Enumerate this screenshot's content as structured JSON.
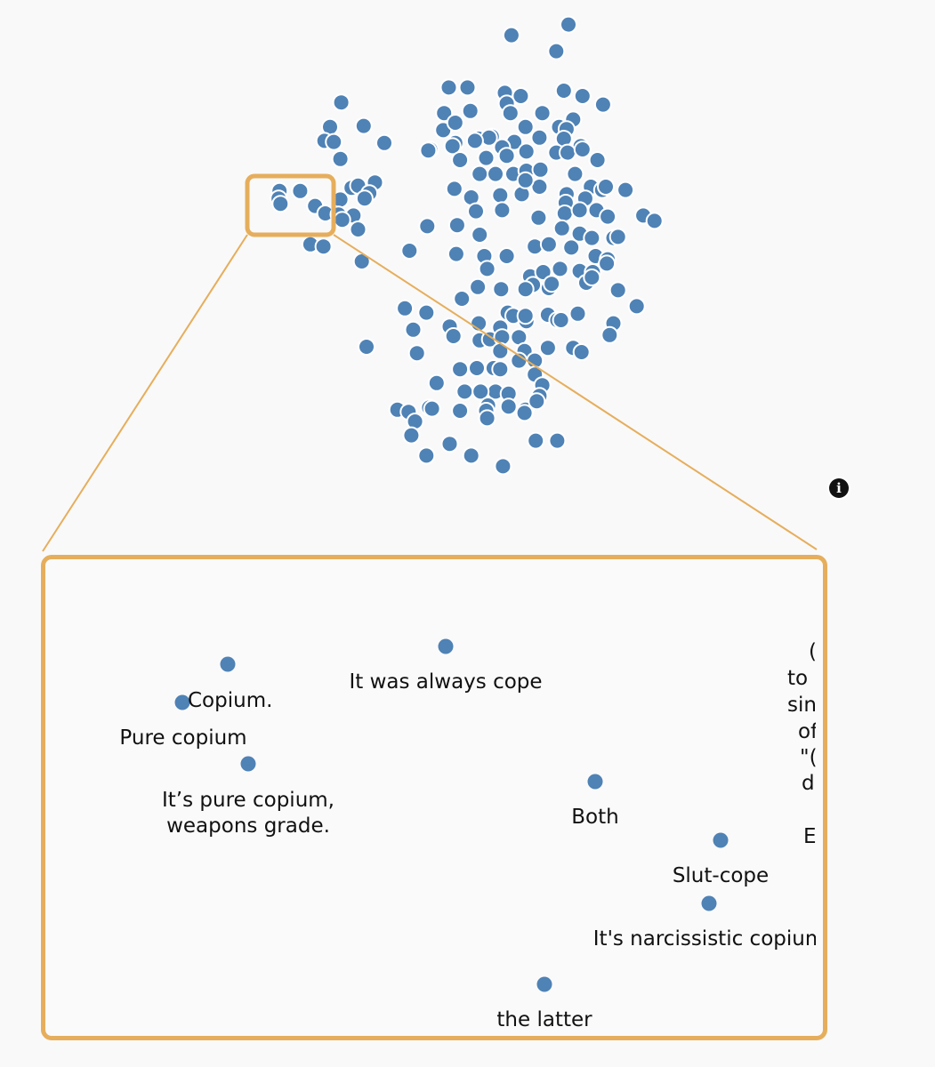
{
  "info_icon": {
    "symbol": "i",
    "name": "info-icon"
  },
  "colors": {
    "point": "#4f82b5",
    "point_stroke": "#ffffff",
    "highlight": "#e6ae5c",
    "label": "#111111",
    "background": "#f9f9f9"
  },
  "zoom_points": [
    {
      "text": "It was always cope"
    },
    {
      "text": ""
    },
    {
      "text": "Copium."
    },
    {
      "text": "Pure copium"
    },
    {
      "text": "It’s pure copium,\nweapons grade."
    },
    {
      "text": "Both"
    },
    {
      "text": "Slut-cope"
    },
    {
      "text": "It's narcissistic copium"
    },
    {
      "text": "the latter"
    }
  ],
  "clipped_fragments": [
    "(",
    "to",
    "sin",
    "of",
    "\"(",
    "d",
    "E"
  ],
  "chart_data": {
    "type": "scatter",
    "title": "",
    "xlabel": "",
    "ylabel": "",
    "grid": false,
    "legend": "none",
    "note": "Embedding scatter of text responses; axes unlabeled. Overview points are approximate positions in unitless embedding space (x right, y down, range 0-100).",
    "xlim": [
      0,
      100
    ],
    "ylim": [
      0,
      100
    ],
    "highlight_box": {
      "x": [
        26.5,
        35.5
      ],
      "y": [
        16.5,
        22
      ]
    },
    "points": [
      [
        60.8,
        2.3
      ],
      [
        54.7,
        3.3
      ],
      [
        59.5,
        4.8
      ],
      [
        48.0,
        8.2
      ],
      [
        50.0,
        8.2
      ],
      [
        54.0,
        8.7
      ],
      [
        55.7,
        9.0
      ],
      [
        54.2,
        9.7
      ],
      [
        60.3,
        8.5
      ],
      [
        62.3,
        9.0
      ],
      [
        64.5,
        9.8
      ],
      [
        36.5,
        9.6
      ],
      [
        47.5,
        10.6
      ],
      [
        50.3,
        10.4
      ],
      [
        54.6,
        10.6
      ],
      [
        58.0,
        10.6
      ],
      [
        61.3,
        11.2
      ],
      [
        35.3,
        11.9
      ],
      [
        38.9,
        11.8
      ],
      [
        47.4,
        12.2
      ],
      [
        48.7,
        11.5
      ],
      [
        52.6,
        12.8
      ],
      [
        56.2,
        11.9
      ],
      [
        59.8,
        11.9
      ],
      [
        60.6,
        12.1
      ],
      [
        34.7,
        13.2
      ],
      [
        35.7,
        13.3
      ],
      [
        41.1,
        13.4
      ],
      [
        46.0,
        14.0
      ],
      [
        48.7,
        13.4
      ],
      [
        51.2,
        13.0
      ],
      [
        52.3,
        12.9
      ],
      [
        55.0,
        13.3
      ],
      [
        57.7,
        12.9
      ],
      [
        60.3,
        13.0
      ],
      [
        62.1,
        13.7
      ],
      [
        36.4,
        14.9
      ],
      [
        45.8,
        14.1
      ],
      [
        48.4,
        13.7
      ],
      [
        50.8,
        13.2
      ],
      [
        53.7,
        13.8
      ],
      [
        56.3,
        14.2
      ],
      [
        59.5,
        14.3
      ],
      [
        60.7,
        14.3
      ],
      [
        62.3,
        14.0
      ],
      [
        63.9,
        15.0
      ],
      [
        49.2,
        15.0
      ],
      [
        52.0,
        14.8
      ],
      [
        54.2,
        14.6
      ],
      [
        51.3,
        16.3
      ],
      [
        53.0,
        16.3
      ],
      [
        54.9,
        16.3
      ],
      [
        56.3,
        16.0
      ],
      [
        57.8,
        15.9
      ],
      [
        61.5,
        16.3
      ],
      [
        63.2,
        17.5
      ],
      [
        64.4,
        17.8
      ],
      [
        66.9,
        17.8
      ],
      [
        40.1,
        17.1
      ],
      [
        29.9,
        17.9
      ],
      [
        32.1,
        17.9
      ],
      [
        37.6,
        17.6
      ],
      [
        38.3,
        17.4
      ],
      [
        39.5,
        18.1
      ],
      [
        29.8,
        18.6
      ],
      [
        30.0,
        19.1
      ],
      [
        33.7,
        19.3
      ],
      [
        36.4,
        18.7
      ],
      [
        39.0,
        18.6
      ],
      [
        48.6,
        17.7
      ],
      [
        50.4,
        18.5
      ],
      [
        53.5,
        18.3
      ],
      [
        55.8,
        18.2
      ],
      [
        57.7,
        17.5
      ],
      [
        56.2,
        16.9
      ],
      [
        60.6,
        18.2
      ],
      [
        62.6,
        18.6
      ],
      [
        64.8,
        17.5
      ],
      [
        60.5,
        19.0
      ],
      [
        34.8,
        20.0
      ],
      [
        36.2,
        20.1
      ],
      [
        37.8,
        20.2
      ],
      [
        36.6,
        20.6
      ],
      [
        38.3,
        21.5
      ],
      [
        50.9,
        19.8
      ],
      [
        53.7,
        19.7
      ],
      [
        57.6,
        20.4
      ],
      [
        60.4,
        20.0
      ],
      [
        62.0,
        19.7
      ],
      [
        63.8,
        19.7
      ],
      [
        65.0,
        20.3
      ],
      [
        68.8,
        20.2
      ],
      [
        70.0,
        20.7
      ],
      [
        45.7,
        21.2
      ],
      [
        48.9,
        21.1
      ],
      [
        51.3,
        22.0
      ],
      [
        60.1,
        21.4
      ],
      [
        62.0,
        21.9
      ],
      [
        63.3,
        22.3
      ],
      [
        65.6,
        22.3
      ],
      [
        66.1,
        22.2
      ],
      [
        33.2,
        22.9
      ],
      [
        34.6,
        23.1
      ],
      [
        43.8,
        23.5
      ],
      [
        48.8,
        23.8
      ],
      [
        51.8,
        24.0
      ],
      [
        54.2,
        24.0
      ],
      [
        57.2,
        23.1
      ],
      [
        58.7,
        22.9
      ],
      [
        61.1,
        23.2
      ],
      [
        63.7,
        24.0
      ],
      [
        65.0,
        24.3
      ],
      [
        38.7,
        24.5
      ],
      [
        52.1,
        25.2
      ],
      [
        56.7,
        25.9
      ],
      [
        58.1,
        25.5
      ],
      [
        59.9,
        25.2
      ],
      [
        62.0,
        25.4
      ],
      [
        63.4,
        25.5
      ],
      [
        64.9,
        24.7
      ],
      [
        57.0,
        26.7
      ],
      [
        58.7,
        27.0
      ],
      [
        62.7,
        26.5
      ],
      [
        63.3,
        26.0
      ],
      [
        51.1,
        26.9
      ],
      [
        53.6,
        27.1
      ],
      [
        56.2,
        27.1
      ],
      [
        59.0,
        26.6
      ],
      [
        66.1,
        27.2
      ],
      [
        49.4,
        28.0
      ],
      [
        68.1,
        28.7
      ],
      [
        43.3,
        28.9
      ],
      [
        45.6,
        29.3
      ],
      [
        54.3,
        29.3
      ],
      [
        54.9,
        29.6
      ],
      [
        56.3,
        30.1
      ],
      [
        58.6,
        29.5
      ],
      [
        56.2,
        29.6
      ],
      [
        59.6,
        30.0
      ],
      [
        60.0,
        30.0
      ],
      [
        61.8,
        29.4
      ],
      [
        65.6,
        30.3
      ],
      [
        48.1,
        30.6
      ],
      [
        51.2,
        30.3
      ],
      [
        53.5,
        30.7
      ],
      [
        55.5,
        31.6
      ],
      [
        65.2,
        31.4
      ],
      [
        44.2,
        30.9
      ],
      [
        48.5,
        31.5
      ],
      [
        51.3,
        31.9
      ],
      [
        52.4,
        31.8
      ],
      [
        53.7,
        31.6
      ],
      [
        39.2,
        32.5
      ],
      [
        44.6,
        33.1
      ],
      [
        53.5,
        32.9
      ],
      [
        56.1,
        32.9
      ],
      [
        58.6,
        32.6
      ],
      [
        61.3,
        32.6
      ],
      [
        62.2,
        33.0
      ],
      [
        55.5,
        33.8
      ],
      [
        57.2,
        33.8
      ],
      [
        49.2,
        34.6
      ],
      [
        51.0,
        34.5
      ],
      [
        52.8,
        34.5
      ],
      [
        53.5,
        34.6
      ],
      [
        57.2,
        35.1
      ],
      [
        46.7,
        35.9
      ],
      [
        53.0,
        36.7
      ],
      [
        54.4,
        36.9
      ],
      [
        58.0,
        36.1
      ],
      [
        49.7,
        36.7
      ],
      [
        51.4,
        36.7
      ],
      [
        57.7,
        37.1
      ],
      [
        42.5,
        38.4
      ],
      [
        45.9,
        38.2
      ],
      [
        43.7,
        38.6
      ],
      [
        46.2,
        38.3
      ],
      [
        49.2,
        38.5
      ],
      [
        52.2,
        38.0
      ],
      [
        52.0,
        38.5
      ],
      [
        54.4,
        38.1
      ],
      [
        56.2,
        38.4
      ],
      [
        57.4,
        37.6
      ],
      [
        44.4,
        39.5
      ],
      [
        52.1,
        39.2
      ],
      [
        56.1,
        38.7
      ],
      [
        44.0,
        40.8
      ],
      [
        57.3,
        41.3
      ],
      [
        59.6,
        41.3
      ],
      [
        48.1,
        41.6
      ],
      [
        45.6,
        42.7
      ],
      [
        50.4,
        42.7
      ],
      [
        53.8,
        43.7
      ]
    ],
    "zoom_points": [
      {
        "x": 51.0,
        "y": 15.0,
        "label": "It was always cope"
      },
      {
        "x": 23.0,
        "y": 19.0,
        "label": ""
      },
      {
        "x": 17.0,
        "y": 27.0,
        "label": "Copium."
      },
      {
        "x": 17.0,
        "y": 27.0,
        "label": "Pure copium"
      },
      {
        "x": 25.0,
        "y": 42.5,
        "label": "It’s pure copium,\nweapons grade."
      },
      {
        "x": 72.0,
        "y": 46.0,
        "label": "Both"
      },
      {
        "x": 88.0,
        "y": 59.0,
        "label": "Slut-cope"
      },
      {
        "x": 86.5,
        "y": 72.0,
        "label": "It's narcissistic copium"
      },
      {
        "x": 65.5,
        "y": 88.5,
        "label": "the latter"
      }
    ]
  }
}
